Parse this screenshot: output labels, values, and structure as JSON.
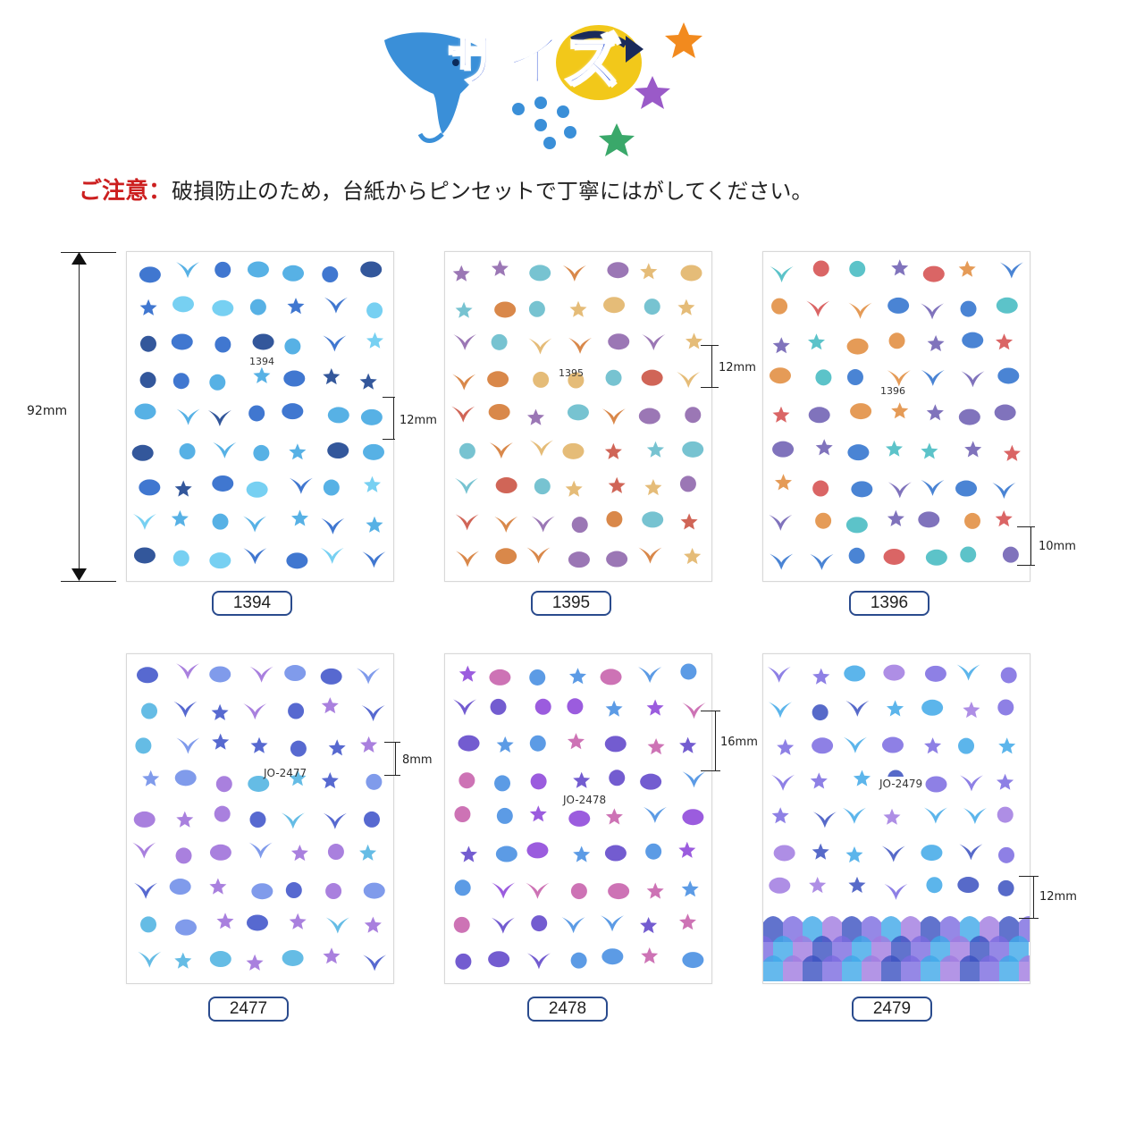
{
  "header": {
    "title": "サイズ"
  },
  "notice": {
    "label": "ご注意：",
    "message": "破損防止のため，台紙からピンセットで丁寧にはがしてください。"
  },
  "measure": {
    "height": "92mm",
    "m1394": "12mm",
    "m1395": "12mm",
    "m1396": "10mm",
    "m2477": "8mm",
    "m2478": "16mm",
    "m2479": "12mm"
  },
  "sheets": [
    {
      "label": "1394",
      "code": "1394"
    },
    {
      "label": "1395",
      "code": "1395"
    },
    {
      "label": "1396",
      "code": "1396"
    },
    {
      "label": "2477",
      "code": "JO-2477"
    },
    {
      "label": "2478",
      "code": "JO-2478"
    },
    {
      "label": "2479",
      "code": "JO-2479"
    }
  ],
  "colors": {
    "title": "#2a4fd6",
    "notice_label": "#cc1f1f",
    "label_border": "#2a4b8d",
    "palette_blue": [
      "#1f5fc8",
      "#3aa3e0",
      "#0f3a8a",
      "#5fc8f0"
    ],
    "palette_sea": [
      "#d2732a",
      "#5fb9c9",
      "#e0b060",
      "#8a5fa8",
      "#c84a3a"
    ],
    "palette_ocean": [
      "#d44a4a",
      "#3fb8c0",
      "#2a6fcc",
      "#e08a3a",
      "#6a5ab0"
    ],
    "palette_mermaid": [
      "#3a4fc8",
      "#6a8ae8",
      "#9a6ad8",
      "#4ab0e0"
    ],
    "palette_purple": [
      "#5a3fc8",
      "#3f8ae0",
      "#8a3fd8",
      "#c45aa8"
    ],
    "palette_holo": [
      "#3a50c0",
      "#7a6ae0",
      "#3fa8e8",
      "#a07ae0"
    ]
  },
  "icons": [
    "manta-ray-icon",
    "yellow-fish-icon",
    "starfish-icon",
    "fish-school-icon"
  ]
}
